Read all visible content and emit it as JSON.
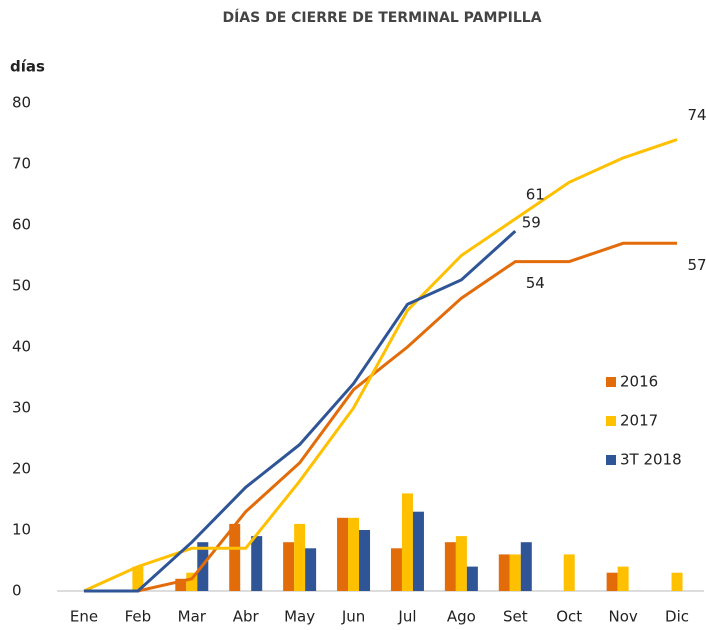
{
  "chart_data": {
    "type": "bar_line",
    "title": "DÍAS DE CIERRE DE TERMINAL PAMPILLA",
    "y_label": "días",
    "categories": [
      "Ene",
      "Feb",
      "Mar",
      "Abr",
      "May",
      "Jun",
      "Jul",
      "Ago",
      "Set",
      "Oct",
      "Nov",
      "Dic"
    ],
    "series": [
      {
        "name": "2016",
        "color": "#e36c0a",
        "values": [
          0,
          0,
          2,
          11,
          8,
          12,
          7,
          8,
          6,
          0,
          3,
          0
        ],
        "cumulative": [
          0,
          0,
          2,
          13,
          21,
          33,
          40,
          48,
          54,
          54,
          57,
          57
        ]
      },
      {
        "name": "2017",
        "color": "#ffc000",
        "values": [
          0,
          4,
          3,
          0,
          11,
          12,
          16,
          9,
          6,
          6,
          4,
          3
        ],
        "cumulative": [
          0,
          4,
          7,
          7,
          18,
          30,
          46,
          55,
          61,
          67,
          71,
          74
        ]
      },
      {
        "name": "3T 2018",
        "color": "#2f5597",
        "values": [
          0,
          0,
          8,
          9,
          7,
          10,
          13,
          4,
          8,
          null,
          null,
          null
        ],
        "cumulative": [
          0,
          0,
          8,
          17,
          24,
          34,
          47,
          51,
          59,
          null,
          null,
          null
        ]
      }
    ],
    "ylim": [
      0,
      80
    ],
    "yticks": [
      0,
      10,
      20,
      30,
      40,
      50,
      60,
      70,
      80
    ],
    "grid": false
  }
}
